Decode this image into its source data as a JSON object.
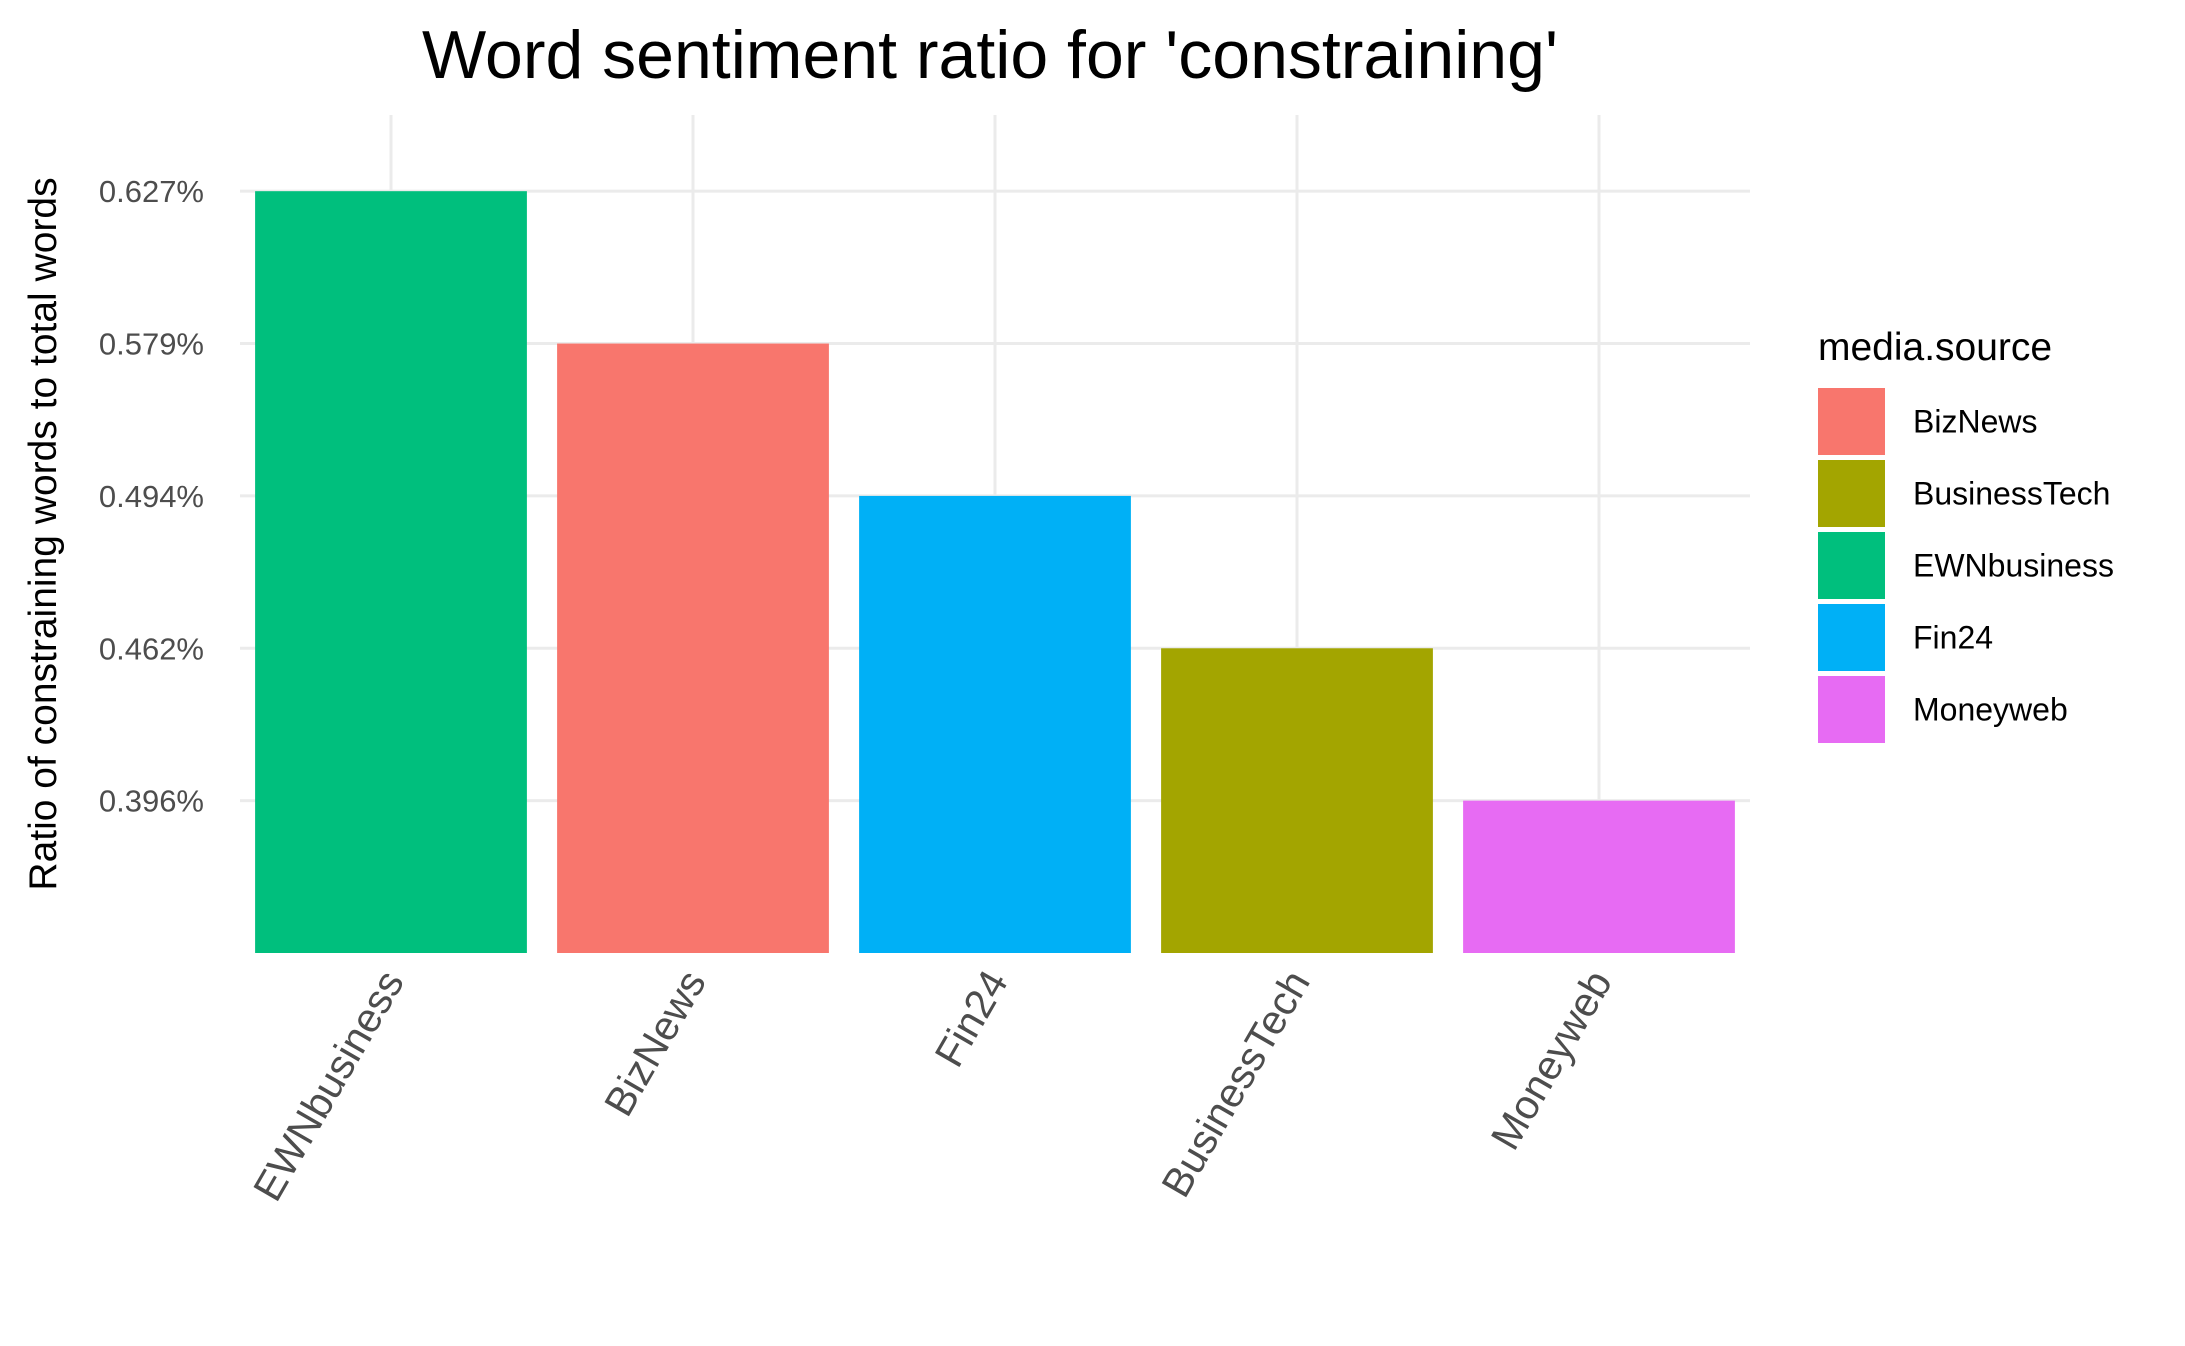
{
  "chart_data": {
    "type": "bar",
    "title": "Word sentiment ratio for 'constraining'",
    "xlabel": "",
    "ylabel": "Ratio of constraining words to total words",
    "categories": [
      "EWNbusiness",
      "BizNews",
      "Fin24",
      "BusinessTech",
      "Moneyweb"
    ],
    "values": [
      0.627,
      0.579,
      0.494,
      0.462,
      0.396
    ],
    "bar_rank": [
      5,
      4,
      3,
      2,
      1
    ],
    "y_ticks": [
      {
        "label": "0.396%",
        "rank": 1
      },
      {
        "label": "0.462%",
        "rank": 2
      },
      {
        "label": "0.494%",
        "rank": 3
      },
      {
        "label": "0.579%",
        "rank": 4
      },
      {
        "label": "0.627%",
        "rank": 5
      }
    ],
    "y_rank_range": [
      0,
      5.5
    ],
    "grid": true,
    "legend": {
      "title": "media.source",
      "placement": "right",
      "entries": [
        {
          "label": "BizNews",
          "color": "#F8766D"
        },
        {
          "label": "BusinessTech",
          "color": "#A3A500"
        },
        {
          "label": "EWNbusiness",
          "color": "#00BF7D"
        },
        {
          "label": "Fin24",
          "color": "#00B0F6"
        },
        {
          "label": "Moneyweb",
          "color": "#E76BF3"
        }
      ]
    },
    "bar_colors": [
      "#00BF7D",
      "#F8766D",
      "#00B0F6",
      "#A3A500",
      "#E76BF3"
    ]
  }
}
